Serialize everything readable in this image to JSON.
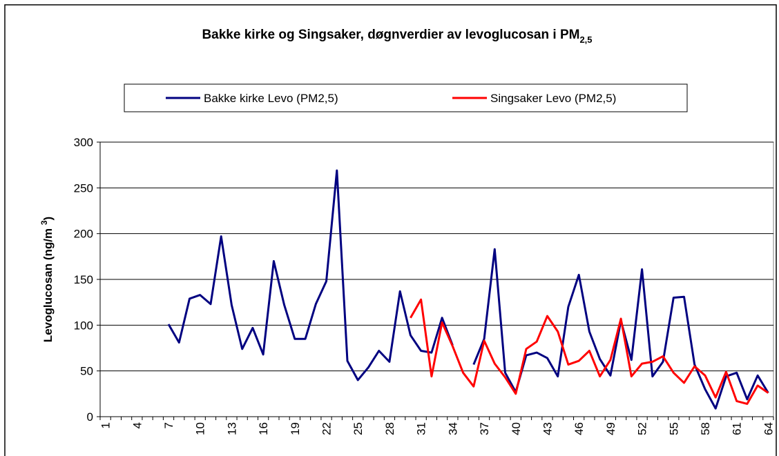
{
  "chart_data": {
    "type": "line",
    "title_parts": [
      "Bakke kirke og Singsaker, døgnverdier av levoglucosan i PM",
      "2,5"
    ],
    "y_label_parts": [
      "Levoglucosan (ng/m ",
      "3",
      ")"
    ],
    "categories": [
      "1",
      null,
      null,
      "4",
      null,
      null,
      "7",
      null,
      null,
      "10",
      null,
      null,
      "13",
      null,
      null,
      "16",
      null,
      null,
      "19",
      null,
      null,
      "22",
      null,
      null,
      "25",
      null,
      null,
      "28",
      null,
      null,
      "31",
      null,
      null,
      "34",
      null,
      null,
      "37",
      null,
      null,
      "40",
      null,
      null,
      "43",
      null,
      null,
      "46",
      null,
      null,
      "49",
      null,
      null,
      "52",
      null,
      null,
      "55",
      null,
      null,
      "58",
      null,
      null,
      "61",
      null,
      null,
      "64"
    ],
    "series": [
      {
        "name": "Bakke kirke Levo (PM2,5)",
        "color": "#000080",
        "values": [
          null,
          null,
          null,
          null,
          null,
          null,
          101,
          81,
          129,
          133,
          123,
          197,
          122,
          74,
          97,
          68,
          170,
          122,
          85,
          85,
          123,
          148,
          269,
          61,
          40,
          54,
          72,
          60,
          137,
          89,
          72,
          70,
          108,
          78,
          null,
          57,
          85,
          183,
          48,
          27,
          67,
          70,
          64,
          44,
          120,
          155,
          93,
          63,
          45,
          105,
          62,
          161,
          44,
          60,
          130,
          131,
          57,
          30,
          9,
          44,
          48,
          19,
          45,
          26
        ]
      },
      {
        "name": "Singsaker Levo (PM2,5)",
        "color": "#ff0000",
        "values": [
          null,
          null,
          null,
          null,
          null,
          null,
          null,
          null,
          null,
          null,
          null,
          null,
          null,
          null,
          null,
          null,
          null,
          null,
          null,
          null,
          null,
          null,
          null,
          null,
          null,
          null,
          null,
          null,
          null,
          108,
          128,
          44,
          103,
          77,
          48,
          33,
          83,
          58,
          43,
          25,
          74,
          82,
          110,
          93,
          57,
          61,
          72,
          44,
          62,
          107,
          44,
          58,
          60,
          66,
          48,
          37,
          55,
          45,
          21,
          49,
          17,
          14,
          34,
          26
        ]
      }
    ],
    "ylim": [
      0,
      300
    ],
    "yticks": [
      0,
      50,
      100,
      150,
      200,
      250,
      300
    ],
    "grid": true
  }
}
